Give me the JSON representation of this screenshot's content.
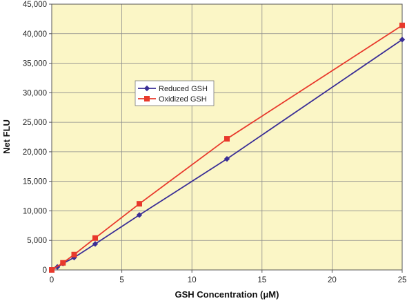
{
  "chart_data": {
    "type": "line",
    "title": "",
    "xlabel": "GSH Concentration (μM)",
    "ylabel": "Net FLU",
    "xlim": [
      0,
      25
    ],
    "ylim": [
      0,
      45000
    ],
    "xticks": [
      0,
      5,
      10,
      15,
      20,
      25
    ],
    "yticks": [
      0,
      5000,
      10000,
      15000,
      20000,
      25000,
      30000,
      35000,
      40000,
      45000
    ],
    "ytick_labels": [
      "0",
      "5,000",
      "10,000",
      "15,000",
      "20,000",
      "25,000",
      "30,000",
      "35,000",
      "40,000",
      "45,000"
    ],
    "grid": true,
    "plot_background": "#fbf6c6",
    "legend_position": "center-left",
    "series": [
      {
        "name": "Reduced GSH",
        "color": "#3a2e96",
        "marker": "diamond",
        "x": [
          0,
          0.4,
          0.8,
          1.6,
          3.1,
          6.25,
          12.5,
          25
        ],
        "y": [
          0,
          500,
          1100,
          2100,
          4400,
          9300,
          18800,
          39000
        ]
      },
      {
        "name": "Oxidized GSH",
        "color": "#e8392c",
        "marker": "square",
        "x": [
          0,
          0.8,
          1.6,
          3.1,
          6.25,
          12.5,
          25
        ],
        "y": [
          0,
          1200,
          2600,
          5400,
          11200,
          22200,
          41400
        ]
      }
    ]
  }
}
